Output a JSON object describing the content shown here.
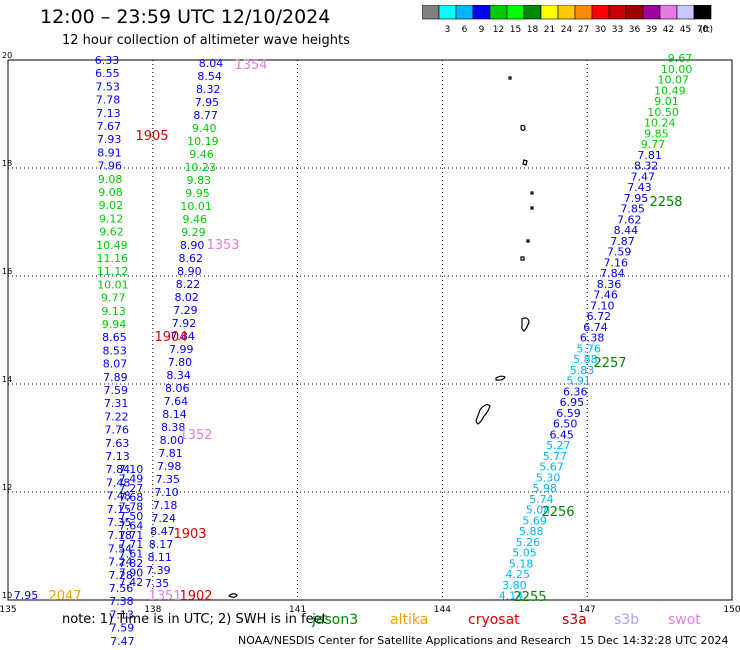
{
  "header": {
    "title": "12:00 – 23:59 UTC 12/10/2024",
    "subtitle": "12 hour collection of altimeter wave heights"
  },
  "legend": {
    "unit": "(ft)",
    "bins": [
      {
        "label": "",
        "color": "#808080"
      },
      {
        "label": "3",
        "color": "#00ffff"
      },
      {
        "label": "6",
        "color": "#00b4ff"
      },
      {
        "label": "9",
        "color": "#0000ff"
      },
      {
        "label": "12",
        "color": "#00cd00"
      },
      {
        "label": "15",
        "color": "#00ff00"
      },
      {
        "label": "18",
        "color": "#008800"
      },
      {
        "label": "21",
        "color": "#ffff00"
      },
      {
        "label": "24",
        "color": "#ffc800"
      },
      {
        "label": "27",
        "color": "#ff8c00"
      },
      {
        "label": "30",
        "color": "#ff0000"
      },
      {
        "label": "33",
        "color": "#c80000"
      },
      {
        "label": "36",
        "color": "#a00000"
      },
      {
        "label": "39",
        "color": "#a000a0"
      },
      {
        "label": "42",
        "color": "#e878e8"
      },
      {
        "label": "45",
        "color": "#c8c8ff"
      },
      {
        "label": "70",
        "color": "#000000"
      }
    ]
  },
  "chart_data": {
    "type": "scatter",
    "title": "12:00 – 23:59 UTC 12/10/2024",
    "xlim": [
      135,
      150
    ],
    "ylim": [
      10,
      20
    ],
    "x_ticks": [
      "135",
      "138",
      "141",
      "144",
      "147",
      "150"
    ],
    "y_ticks": [
      "10",
      "12",
      "14",
      "16",
      "18",
      "20"
    ],
    "grid": true,
    "tracks": [
      {
        "x": 135.9,
        "y": 20.0,
        "values": [
          "6.33",
          "6.55",
          "7.53",
          "7.78",
          "7.13",
          "7.67",
          "7.93",
          "8.91",
          "7.96",
          "9.08",
          "9.08",
          "9.02",
          "9.12",
          "9.62",
          "10.49",
          "11.16",
          "11.12",
          "10.01",
          "9.77",
          "9.13",
          "9.94",
          "8.65",
          "8.53",
          "8.07",
          "7.89",
          "7.59",
          "7.31",
          "7.22",
          "7.76",
          "7.63",
          "7.13",
          "7.84",
          "7.48",
          "7.48",
          "7.15",
          "7.35",
          "7.18",
          "7.54",
          "7.24",
          "7.28",
          "7.56",
          "7.38",
          "7.13",
          "7.59",
          "7.47"
        ]
      },
      {
        "x": 137.5,
        "y": 20.0,
        "values": [
          "7.10",
          "7.49",
          "7.27",
          "7.68",
          "7.78",
          "7.50",
          "7.64",
          "7.71",
          "7.71",
          "7.61",
          "7.82",
          "7.90",
          "7.42"
        ]
      },
      {
        "x": 138.6,
        "y": 20.0,
        "values": [
          "8.04",
          "8.54",
          "8.32",
          "7.95",
          "8.77",
          "9.40",
          "10.19",
          "9.46",
          "10.23",
          "9.83",
          "9.95",
          "10.01",
          "9.46",
          "9.29",
          "8.90",
          "8.62",
          "8.90",
          "8.22",
          "8.02",
          "7.29",
          "7.92",
          "7.84",
          "7.99",
          "7.80",
          "8.34",
          "8.06",
          "7.64",
          "8.14",
          "8.38",
          "8.00",
          "7.81",
          "7.98",
          "7.35",
          "7.10",
          "7.18",
          "7.24",
          "8.47",
          "8.17",
          "8.11",
          "7.39",
          "7.35"
        ]
      },
      {
        "x": 149.4,
        "y": 20.0,
        "values": [
          "9.67",
          "10.00",
          "10.07",
          "10.49",
          "9.01",
          "10.50",
          "10.24",
          "9.85",
          "9.77",
          "7.81",
          "8.32",
          "7.47",
          "7.43",
          "7.95",
          "7.85",
          "7.62",
          "8.44",
          "7.87",
          "7.59",
          "7.16",
          "7.84",
          "8.36",
          "7.46",
          "7.10",
          "6.72",
          "6.74",
          "6.38",
          "5.76",
          "5.88",
          "5.83",
          "5.91",
          "6.36",
          "6.95",
          "6.59",
          "6.50",
          "6.45",
          "5.27",
          "5.77",
          "5.67",
          "5.30",
          "5.98",
          "5.74",
          "5.08",
          "5.69",
          "5.88",
          "5.26",
          "5.05",
          "5.18",
          "4.25",
          "3.80",
          "4.14"
        ]
      }
    ],
    "time_labels": [
      {
        "text": "1354",
        "color": "#e080e0"
      },
      {
        "text": "1905",
        "color": "#e00000"
      },
      {
        "text": "1353",
        "color": "#e080e0"
      },
      {
        "text": "1904",
        "color": "#e00000"
      },
      {
        "text": "1352",
        "color": "#e080e0"
      },
      {
        "text": "1903",
        "color": "#e00000"
      },
      {
        "text": "1902",
        "color": "#e00000"
      },
      {
        "text": "1351",
        "color": "#e080e0"
      },
      {
        "text": "2047",
        "color": "#f0a000"
      },
      {
        "text": "2258",
        "color": "#008800"
      },
      {
        "text": "2257",
        "color": "#008800"
      },
      {
        "text": "2256",
        "color": "#008800"
      },
      {
        "text": "2255",
        "color": "#008800"
      }
    ],
    "extra_values": [
      "7.95"
    ]
  },
  "footer": {
    "note": "note:  1) Time is in UTC; 2) SWH is in feet",
    "missions": [
      {
        "label": "jason3",
        "color": "#008800"
      },
      {
        "label": "altika",
        "color": "#f0a000"
      },
      {
        "label": "cryosat",
        "color": "#e00000"
      },
      {
        "label": "s3a",
        "color": "#c00000"
      },
      {
        "label": "s3b",
        "color": "#b0a0f0"
      },
      {
        "label": "swot",
        "color": "#e080e0"
      }
    ],
    "credit": "NOAA/NESDIS Center for Satellite Applications and Research",
    "timestamp": "15 Dec 14:32:28 UTC 2024"
  }
}
